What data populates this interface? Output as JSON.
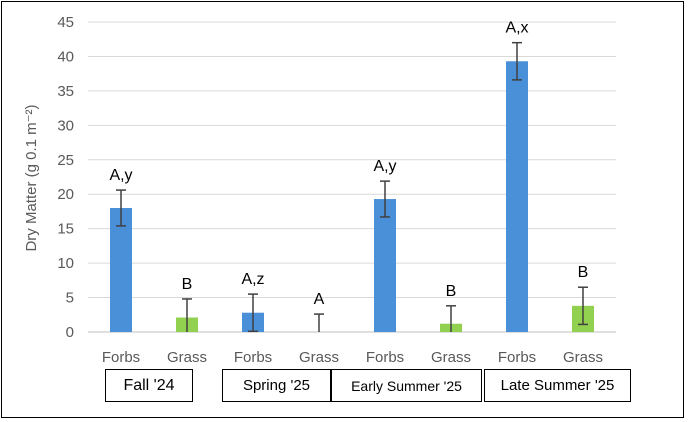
{
  "chart_data": {
    "type": "bar",
    "ylabel": "Dry Matter (g 0.1 m⁻²)",
    "ylim": [
      0,
      45
    ],
    "yticks": [
      0,
      5,
      10,
      15,
      20,
      25,
      30,
      35,
      40,
      45
    ],
    "grid": true,
    "categories": [
      "Forbs",
      "Grass",
      "Forbs",
      "Grass",
      "Forbs",
      "Grass",
      "Forbs",
      "Grass"
    ],
    "values": [
      18.0,
      2.1,
      2.8,
      0,
      19.3,
      1.2,
      39.3,
      3.8
    ],
    "errors": [
      2.6,
      2.7,
      2.7,
      2.6,
      2.6,
      2.6,
      2.7,
      2.7
    ],
    "labels": [
      "A,y",
      "B",
      "A,z",
      "A",
      "A,y",
      "B",
      "A,x",
      "B"
    ],
    "colors": [
      "#4a90d9",
      "#92d050",
      "#4a90d9",
      "#92d050",
      "#4a90d9",
      "#92d050",
      "#4a90d9",
      "#92d050"
    ],
    "groups": [
      "Fall '24",
      "Spring '25",
      "Early Summer '25",
      "Late Summer '25"
    ]
  }
}
